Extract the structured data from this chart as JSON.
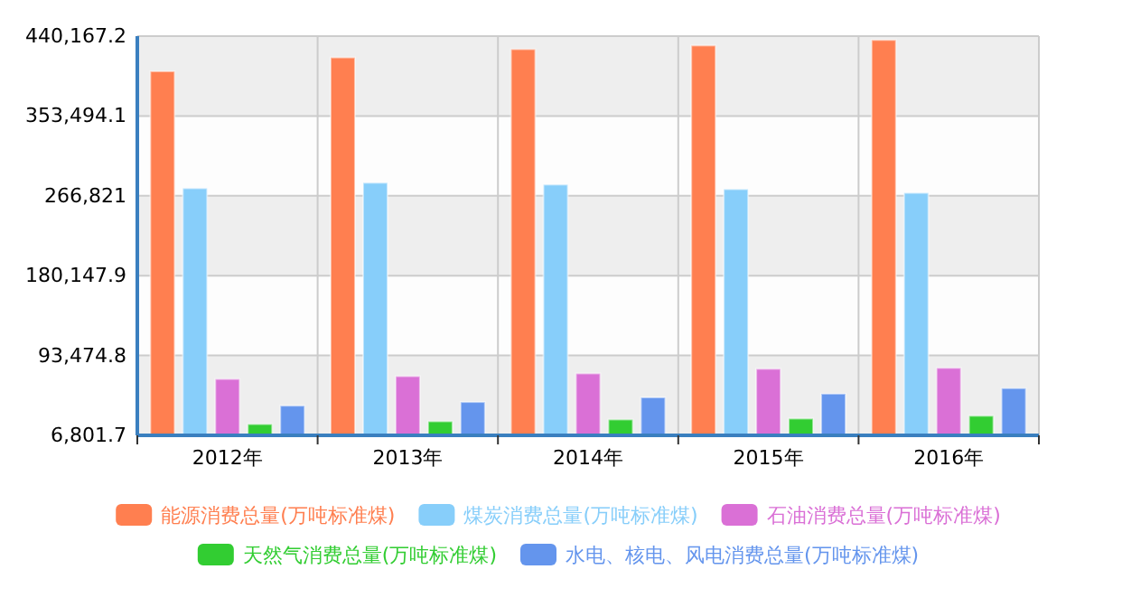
{
  "chart_data": {
    "type": "bar",
    "categories": [
      "2012年",
      "2013年",
      "2014年",
      "2015年",
      "2016年"
    ],
    "series": [
      {
        "name": "能源消费总量(万吨标准煤)",
        "color": "#ff7f50",
        "values": [
          402000,
          417000,
          426000,
          430000,
          436000
        ]
      },
      {
        "name": "煤炭消费总量(万吨标准煤)",
        "color": "#87cefa",
        "values": [
          275000,
          281000,
          279000,
          274000,
          270000
        ]
      },
      {
        "name": "石油消费总量(万吨标准煤)",
        "color": "#da70d6",
        "values": [
          68000,
          71000,
          74000,
          79000,
          80000
        ]
      },
      {
        "name": "天然气消费总量(万吨标准煤)",
        "color": "#32cd32",
        "values": [
          19000,
          22000,
          24000,
          25000,
          28000
        ]
      },
      {
        "name": "水电、核电、风电消费总量(万吨标准煤)",
        "color": "#6495ed",
        "values": [
          39000,
          43000,
          48000,
          52000,
          58000
        ]
      }
    ],
    "ylim": [
      6801.7,
      440167.2
    ],
    "yticks": [
      {
        "value": 6801.7,
        "label": "6,801.7"
      },
      {
        "value": 93474.8,
        "label": "93,474.8"
      },
      {
        "value": 180147.9,
        "label": "180,147.9"
      },
      {
        "value": 266821,
        "label": "266,821"
      },
      {
        "value": 353494.1,
        "label": "353,494.1"
      },
      {
        "value": 440167.2,
        "label": "440,167.2"
      }
    ],
    "grid": true,
    "legend": "bottom"
  }
}
